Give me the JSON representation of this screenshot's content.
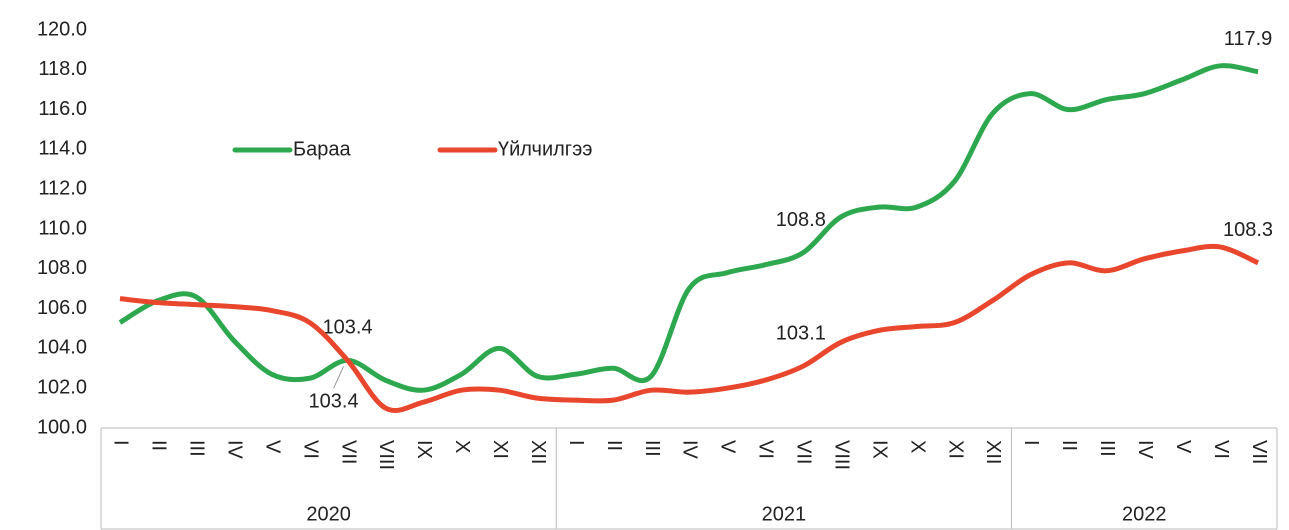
{
  "chart_data": {
    "type": "line",
    "category_groups": [
      {
        "name": "2020",
        "categories": [
          "I",
          "II",
          "III",
          "IV",
          "V",
          "VI",
          "VII",
          "VIII",
          "IX",
          "X",
          "XI",
          "XII"
        ]
      },
      {
        "name": "2021",
        "categories": [
          "I",
          "II",
          "III",
          "IV",
          "V",
          "VI",
          "VII",
          "VIII",
          "IX",
          "X",
          "XI",
          "XII"
        ]
      },
      {
        "name": "2022",
        "categories": [
          "I",
          "II",
          "III",
          "IV",
          "V",
          "VI",
          "VII"
        ]
      }
    ],
    "series": [
      {
        "name": "Бараа",
        "color": "#2ea84f",
        "values": [
          105.3,
          106.4,
          106.6,
          104.4,
          102.7,
          102.5,
          103.4,
          102.4,
          101.9,
          102.7,
          104.0,
          102.6,
          102.7,
          103.0,
          102.6,
          107.0,
          107.8,
          108.2,
          108.8,
          110.6,
          111.1,
          111.1,
          112.4,
          115.8,
          116.8,
          116.0,
          116.5,
          116.8,
          117.5,
          118.2,
          117.9
        ],
        "value_labels": [
          null,
          null,
          null,
          null,
          null,
          null,
          "103.4",
          null,
          null,
          null,
          null,
          null,
          null,
          null,
          null,
          null,
          null,
          null,
          "108.8",
          null,
          null,
          null,
          null,
          null,
          null,
          null,
          null,
          null,
          null,
          null,
          "117.9"
        ]
      },
      {
        "name": "Үйлчилгээ",
        "color": "#e8472e",
        "values": [
          106.5,
          106.3,
          106.2,
          106.1,
          105.9,
          105.3,
          103.4,
          101.0,
          101.3,
          101.9,
          101.9,
          101.5,
          101.4,
          101.4,
          101.9,
          101.8,
          102.0,
          102.4,
          103.1,
          104.3,
          104.9,
          105.1,
          105.3,
          106.4,
          107.7,
          108.3,
          107.9,
          108.5,
          108.9,
          109.1,
          108.3
        ],
        "value_labels": [
          null,
          null,
          null,
          null,
          null,
          null,
          "103.4",
          null,
          null,
          null,
          null,
          null,
          null,
          null,
          null,
          null,
          null,
          null,
          "103.1",
          null,
          null,
          null,
          null,
          null,
          null,
          null,
          null,
          null,
          null,
          null,
          "108.3"
        ]
      }
    ],
    "ylim": [
      100,
      120
    ],
    "yticks": [
      {
        "value": 100,
        "label": "100.0"
      },
      {
        "value": 102,
        "label": "102.0"
      },
      {
        "value": 104,
        "label": "104.0"
      },
      {
        "value": 106,
        "label": "106.0"
      },
      {
        "value": 108,
        "label": "108.0"
      },
      {
        "value": 110,
        "label": "110.0"
      },
      {
        "value": 112,
        "label": "112.0"
      },
      {
        "value": 114,
        "label": "114.0"
      },
      {
        "value": 116,
        "label": "116.0"
      },
      {
        "value": 118,
        "label": "118.0"
      },
      {
        "value": 120,
        "label": "120.0"
      }
    ],
    "grid": false,
    "legend": "top-left"
  }
}
